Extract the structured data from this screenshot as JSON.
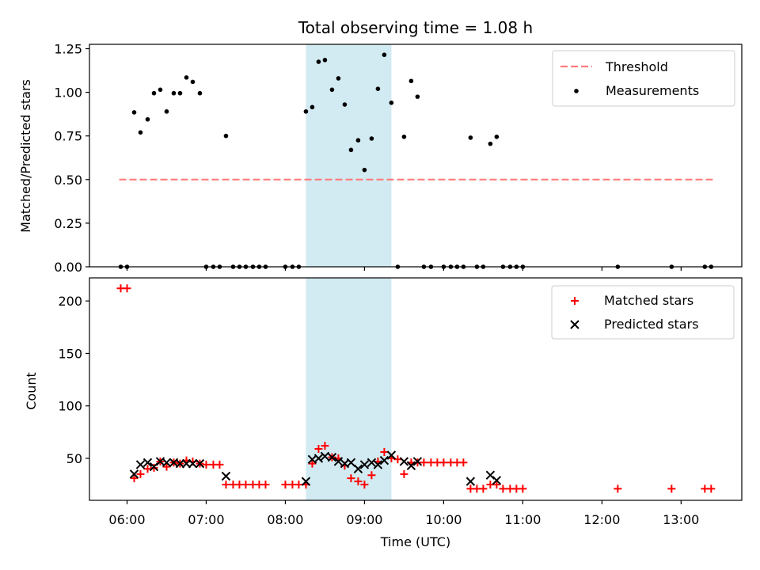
{
  "chart_data": [
    {
      "type": "scatter",
      "title": "Total observing time = 1.08 h",
      "ylabel": "Matched/Predicted stars",
      "xlabel": "",
      "xlim": [
        5.525,
        13.767
      ],
      "ylim": [
        0,
        1.275
      ],
      "y_ticks": [
        0.0,
        0.25,
        0.5,
        0.75,
        1.0,
        1.25
      ],
      "y_tick_labels": [
        "0.00",
        "0.25",
        "0.50",
        "0.75",
        "1.00",
        "1.25"
      ],
      "shaded_span": {
        "x0": 8.26,
        "x1": 9.34,
        "color": "#add8e6"
      },
      "legend": {
        "position": "top-right",
        "entries": [
          "Threshold",
          "Measurements"
        ]
      },
      "threshold": {
        "name": "Threshold",
        "y": 0.5,
        "x0": 5.9,
        "x1": 13.4,
        "color": "#ff7b7b"
      },
      "series": [
        {
          "name": "Measurements",
          "color": "#000000",
          "points": [
            [
              5.92,
              0
            ],
            [
              6.0,
              0
            ],
            [
              6.09,
              0.885
            ],
            [
              6.17,
              0.77
            ],
            [
              6.26,
              0.845
            ],
            [
              6.34,
              0.995
            ],
            [
              6.42,
              1.015
            ],
            [
              6.5,
              0.89
            ],
            [
              6.59,
              0.995
            ],
            [
              6.67,
              0.995
            ],
            [
              6.75,
              1.085
            ],
            [
              6.83,
              1.06
            ],
            [
              6.92,
              0.995
            ],
            [
              7.0,
              0
            ],
            [
              7.09,
              0
            ],
            [
              7.17,
              0
            ],
            [
              7.25,
              0.75
            ],
            [
              7.34,
              0
            ],
            [
              7.42,
              0
            ],
            [
              7.5,
              0
            ],
            [
              7.59,
              0
            ],
            [
              7.67,
              0
            ],
            [
              7.75,
              0
            ],
            [
              8.0,
              0
            ],
            [
              8.09,
              0
            ],
            [
              8.17,
              0
            ],
            [
              8.26,
              0.89
            ],
            [
              8.34,
              0.915
            ],
            [
              8.42,
              1.175
            ],
            [
              8.5,
              1.185
            ],
            [
              8.59,
              1.015
            ],
            [
              8.67,
              1.08
            ],
            [
              8.75,
              0.93
            ],
            [
              8.83,
              0.67
            ],
            [
              8.92,
              0.725
            ],
            [
              9.0,
              0.555
            ],
            [
              9.09,
              0.735
            ],
            [
              9.17,
              1.02
            ],
            [
              9.25,
              1.215
            ],
            [
              9.34,
              0.94
            ],
            [
              9.42,
              0
            ],
            [
              9.5,
              0.745
            ],
            [
              9.59,
              1.065
            ],
            [
              9.67,
              0.975
            ],
            [
              9.75,
              0
            ],
            [
              9.84,
              0
            ],
            [
              10.0,
              0
            ],
            [
              10.09,
              0
            ],
            [
              10.17,
              0
            ],
            [
              10.25,
              0
            ],
            [
              10.34,
              0.74
            ],
            [
              10.42,
              0
            ],
            [
              10.5,
              0
            ],
            [
              10.59,
              0.705
            ],
            [
              10.67,
              0.745
            ],
            [
              10.75,
              0
            ],
            [
              10.84,
              0
            ],
            [
              10.92,
              0
            ],
            [
              11.0,
              0
            ],
            [
              12.2,
              0
            ],
            [
              12.88,
              0
            ],
            [
              13.3,
              0
            ],
            [
              13.38,
              0
            ]
          ]
        }
      ]
    },
    {
      "type": "scatter",
      "title": "",
      "ylabel": "Count",
      "xlabel": "Time (UTC)",
      "xlim": [
        5.525,
        13.767
      ],
      "ylim": [
        10,
        222
      ],
      "y_ticks": [
        50,
        100,
        150,
        200
      ],
      "y_tick_labels": [
        "50",
        "100",
        "150",
        "200"
      ],
      "x_ticks": [
        6,
        7,
        8,
        9,
        10,
        11,
        12,
        13
      ],
      "x_tick_labels": [
        "06:00",
        "07:00",
        "08:00",
        "09:00",
        "10:00",
        "11:00",
        "12:00",
        "13:00"
      ],
      "shaded_span": {
        "x0": 8.26,
        "x1": 9.34,
        "color": "#add8e6"
      },
      "legend": {
        "position": "top-right",
        "entries": [
          "Matched stars",
          "Predicted stars"
        ]
      },
      "series": [
        {
          "name": "Matched stars",
          "marker": "plus",
          "color": "#ff0000",
          "points": [
            [
              5.92,
              212
            ],
            [
              6.0,
              212
            ],
            [
              6.09,
              31
            ],
            [
              6.17,
              35
            ],
            [
              6.26,
              40
            ],
            [
              6.34,
              41
            ],
            [
              6.42,
              47
            ],
            [
              6.5,
              42
            ],
            [
              6.59,
              46
            ],
            [
              6.67,
              45
            ],
            [
              6.75,
              48
            ],
            [
              6.83,
              47
            ],
            [
              6.92,
              45
            ],
            [
              7.0,
              44
            ],
            [
              7.09,
              44
            ],
            [
              7.17,
              44
            ],
            [
              7.25,
              25
            ],
            [
              7.34,
              25
            ],
            [
              7.42,
              25
            ],
            [
              7.5,
              25
            ],
            [
              7.59,
              25
            ],
            [
              7.67,
              25
            ],
            [
              7.75,
              25
            ],
            [
              8.0,
              25
            ],
            [
              8.09,
              25
            ],
            [
              8.17,
              25
            ],
            [
              8.26,
              25
            ],
            [
              8.34,
              45
            ],
            [
              8.42,
              59
            ],
            [
              8.5,
              62
            ],
            [
              8.59,
              51
            ],
            [
              8.67,
              50
            ],
            [
              8.75,
              43
            ],
            [
              8.83,
              31
            ],
            [
              8.92,
              28
            ],
            [
              9.0,
              25
            ],
            [
              9.09,
              34
            ],
            [
              9.17,
              47
            ],
            [
              9.25,
              56
            ],
            [
              9.34,
              50
            ],
            [
              9.42,
              49
            ],
            [
              9.5,
              35
            ],
            [
              9.59,
              46
            ],
            [
              9.67,
              46
            ],
            [
              9.75,
              46
            ],
            [
              9.84,
              46
            ],
            [
              9.92,
              46
            ],
            [
              10.0,
              46
            ],
            [
              10.09,
              46
            ],
            [
              10.17,
              46
            ],
            [
              10.25,
              46
            ],
            [
              10.34,
              21
            ],
            [
              10.42,
              21
            ],
            [
              10.5,
              21
            ],
            [
              10.59,
              25
            ],
            [
              10.67,
              25
            ],
            [
              10.75,
              21
            ],
            [
              10.84,
              21
            ],
            [
              10.92,
              21
            ],
            [
              11.0,
              21
            ],
            [
              12.2,
              21
            ],
            [
              12.88,
              21
            ],
            [
              13.3,
              21
            ],
            [
              13.38,
              21
            ]
          ]
        },
        {
          "name": "Predicted stars",
          "marker": "x",
          "color": "#000000",
          "points": [
            [
              6.09,
              35
            ],
            [
              6.17,
              44
            ],
            [
              6.26,
              46
            ],
            [
              6.34,
              42
            ],
            [
              6.42,
              47
            ],
            [
              6.5,
              46
            ],
            [
              6.59,
              46
            ],
            [
              6.67,
              45
            ],
            [
              6.75,
              45
            ],
            [
              6.83,
              45
            ],
            [
              6.92,
              45
            ],
            [
              7.25,
              33
            ],
            [
              8.26,
              28
            ],
            [
              8.34,
              49
            ],
            [
              8.42,
              50
            ],
            [
              8.5,
              52
            ],
            [
              8.59,
              51
            ],
            [
              8.67,
              47
            ],
            [
              8.75,
              45
            ],
            [
              8.83,
              46
            ],
            [
              8.92,
              40
            ],
            [
              9.0,
              44
            ],
            [
              9.09,
              46
            ],
            [
              9.17,
              44
            ],
            [
              9.25,
              48
            ],
            [
              9.34,
              53
            ],
            [
              9.5,
              47
            ],
            [
              9.59,
              43
            ],
            [
              9.67,
              47
            ],
            [
              10.34,
              28
            ],
            [
              10.59,
              34
            ],
            [
              10.67,
              29
            ]
          ]
        }
      ]
    }
  ]
}
